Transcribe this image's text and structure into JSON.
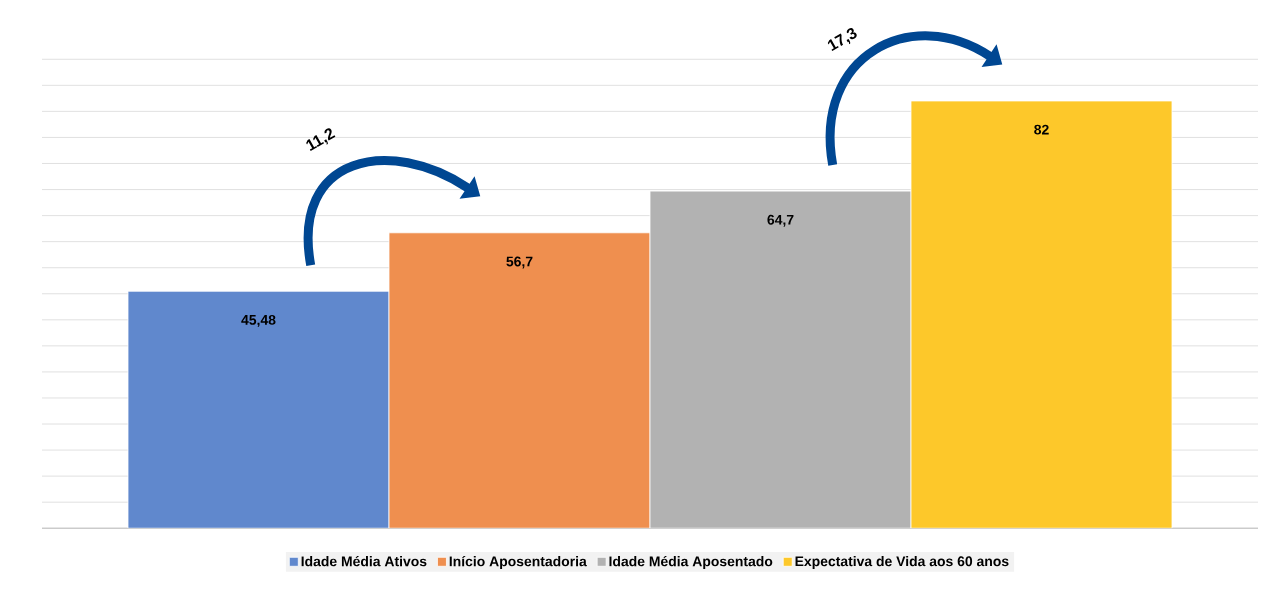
{
  "chart_data": {
    "type": "bar",
    "categories": [
      null
    ],
    "series": [
      {
        "name": "Idade Média Ativos",
        "color": "#6088cd",
        "values": [
          45.48
        ],
        "value_labels": [
          "45,48"
        ]
      },
      {
        "name": "Início Aposentadoria",
        "color": "#ef8f4f",
        "values": [
          56.7
        ],
        "value_labels": [
          "56,7"
        ]
      },
      {
        "name": "Idade Média Aposentado",
        "color": "#b2b2b2",
        "values": [
          64.7
        ],
        "value_labels": [
          "64,7"
        ]
      },
      {
        "name": "Expectativa de Vida aos 60 anos",
        "color": "#fdc82a",
        "values": [
          82
        ],
        "value_labels": [
          "82"
        ]
      }
    ],
    "annotations": [
      "11,2",
      "17,3"
    ],
    "tick_labels": false,
    "grid": "y",
    "legend": "bottom"
  }
}
